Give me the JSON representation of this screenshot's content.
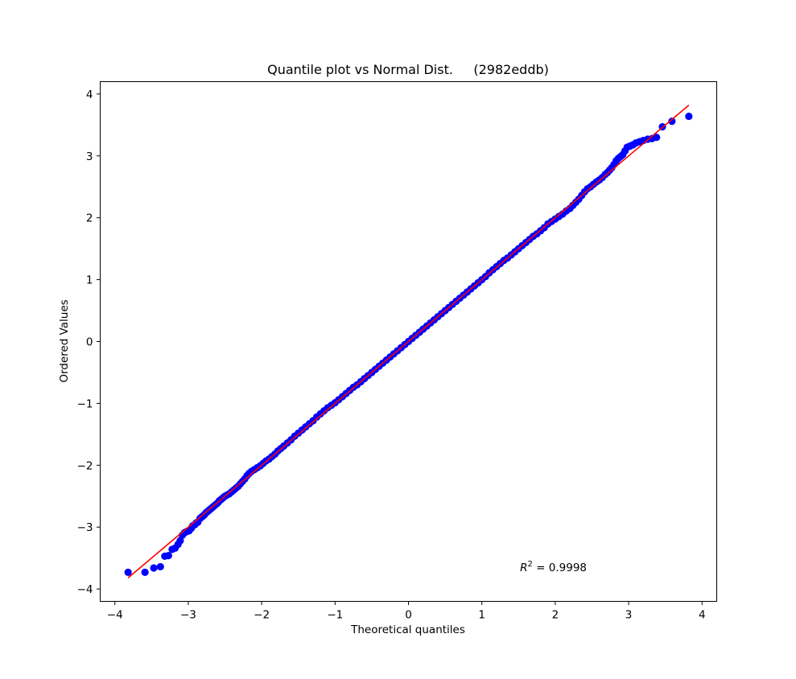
{
  "chart_data": {
    "type": "scatter",
    "title": "Quantile plot vs Normal Dist.     (2982eddb)",
    "xlabel": "Theoretical quantiles",
    "ylabel": "Ordered Values",
    "xlim": [
      -4.2,
      4.2
    ],
    "ylim": [
      -4.2,
      4.2
    ],
    "xticks": [
      -4,
      -3,
      -2,
      -1,
      0,
      1,
      2,
      3,
      4
    ],
    "yticks": [
      -4,
      -3,
      -2,
      -1,
      0,
      1,
      2,
      3,
      4
    ],
    "xtick_labels": [
      "−4",
      "−3",
      "−2",
      "−1",
      "0",
      "1",
      "2",
      "3",
      "4"
    ],
    "ytick_labels": [
      "−4",
      "−3",
      "−2",
      "−1",
      "0",
      "1",
      "2",
      "3",
      "4"
    ],
    "grid": false,
    "annotation": {
      "label": "R",
      "superscript": "2",
      "text": " = 0.9998",
      "x": 1.52,
      "y": -3.65
    },
    "fit_line": {
      "x": [
        -3.82,
        3.82
      ],
      "y": [
        -3.82,
        3.82
      ],
      "color": "#ff0000"
    },
    "marker_color": "#0000ff",
    "series": [
      {
        "points": [
          [
            -3.82,
            -3.73
          ],
          [
            -3.59,
            -3.73
          ],
          [
            -3.47,
            -3.66
          ],
          [
            -3.38,
            -3.64
          ],
          [
            -3.32,
            -3.47
          ],
          [
            -3.27,
            -3.46
          ],
          [
            -3.22,
            -3.36
          ],
          [
            -3.18,
            -3.34
          ],
          [
            -3.14,
            -3.28
          ],
          [
            -3.11,
            -3.22
          ],
          [
            -3.08,
            -3.13
          ],
          [
            -3.05,
            -3.09
          ],
          [
            -3.02,
            -3.07
          ],
          [
            -2.99,
            -3.06
          ],
          [
            -2.96,
            -3.02
          ],
          [
            -2.94,
            -2.98
          ],
          [
            -2.91,
            -2.96
          ],
          [
            -2.89,
            -2.93
          ],
          [
            -2.87,
            -2.92
          ],
          [
            -2.84,
            -2.86
          ],
          [
            -2.82,
            -2.84
          ],
          [
            -2.8,
            -2.82
          ],
          [
            -2.78,
            -2.8
          ],
          [
            -2.76,
            -2.77
          ],
          [
            -2.74,
            -2.75
          ],
          [
            -2.72,
            -2.73
          ],
          [
            -2.7,
            -2.71
          ],
          [
            -2.68,
            -2.69
          ],
          [
            -2.66,
            -2.67
          ],
          [
            -2.64,
            -2.65
          ],
          [
            -2.62,
            -2.63
          ],
          [
            -2.6,
            -2.61
          ],
          [
            -2.58,
            -2.58
          ],
          [
            -2.56,
            -2.56
          ],
          [
            -2.54,
            -2.54
          ],
          [
            -2.52,
            -2.52
          ],
          [
            -2.5,
            -2.5
          ],
          [
            -2.47,
            -2.48
          ],
          [
            -2.44,
            -2.46
          ],
          [
            -2.41,
            -2.43
          ],
          [
            -2.38,
            -2.4
          ],
          [
            -2.35,
            -2.37
          ],
          [
            -2.32,
            -2.34
          ],
          [
            -2.29,
            -2.3
          ],
          [
            -2.26,
            -2.26
          ],
          [
            -2.23,
            -2.22
          ],
          [
            -2.2,
            -2.17
          ],
          [
            -2.17,
            -2.13
          ],
          [
            -2.14,
            -2.1
          ],
          [
            -2.1,
            -2.07
          ],
          [
            -2.06,
            -2.04
          ],
          [
            -2.02,
            -2.01
          ],
          [
            -1.98,
            -1.97
          ],
          [
            -1.94,
            -1.93
          ],
          [
            -1.9,
            -1.9
          ],
          [
            -1.86,
            -1.86
          ],
          [
            -1.82,
            -1.82
          ],
          [
            -1.78,
            -1.77
          ],
          [
            -1.74,
            -1.73
          ],
          [
            -1.7,
            -1.69
          ],
          [
            -1.65,
            -1.64
          ],
          [
            -1.6,
            -1.59
          ],
          [
            -1.55,
            -1.53
          ],
          [
            -1.5,
            -1.48
          ],
          [
            -1.45,
            -1.43
          ],
          [
            -1.4,
            -1.38
          ],
          [
            -1.35,
            -1.33
          ],
          [
            -1.3,
            -1.28
          ],
          [
            -1.25,
            -1.22
          ],
          [
            -1.2,
            -1.17
          ],
          [
            -1.15,
            -1.12
          ],
          [
            -1.1,
            -1.07
          ],
          [
            -1.05,
            -1.03
          ],
          [
            -1.0,
            -0.99
          ],
          [
            -0.95,
            -0.94
          ],
          [
            -0.9,
            -0.89
          ],
          [
            -0.85,
            -0.84
          ],
          [
            -0.8,
            -0.79
          ],
          [
            -0.75,
            -0.74
          ],
          [
            -0.7,
            -0.7
          ],
          [
            -0.65,
            -0.65
          ],
          [
            -0.6,
            -0.6
          ],
          [
            -0.55,
            -0.55
          ],
          [
            -0.5,
            -0.5
          ],
          [
            -0.45,
            -0.45
          ],
          [
            -0.4,
            -0.4
          ],
          [
            -0.35,
            -0.35
          ],
          [
            -0.3,
            -0.3
          ],
          [
            -0.25,
            -0.25
          ],
          [
            -0.2,
            -0.2
          ],
          [
            -0.15,
            -0.15
          ],
          [
            -0.1,
            -0.1
          ],
          [
            -0.05,
            -0.05
          ],
          [
            0.0,
            0.0
          ],
          [
            0.05,
            0.05
          ],
          [
            0.1,
            0.1
          ],
          [
            0.15,
            0.15
          ],
          [
            0.2,
            0.2
          ],
          [
            0.25,
            0.25
          ],
          [
            0.3,
            0.3
          ],
          [
            0.35,
            0.35
          ],
          [
            0.4,
            0.4
          ],
          [
            0.45,
            0.45
          ],
          [
            0.5,
            0.5
          ],
          [
            0.55,
            0.55
          ],
          [
            0.6,
            0.6
          ],
          [
            0.65,
            0.65
          ],
          [
            0.7,
            0.7
          ],
          [
            0.75,
            0.75
          ],
          [
            0.8,
            0.8
          ],
          [
            0.85,
            0.85
          ],
          [
            0.9,
            0.9
          ],
          [
            0.95,
            0.95
          ],
          [
            1.0,
            1.0
          ],
          [
            1.05,
            1.05
          ],
          [
            1.1,
            1.11
          ],
          [
            1.15,
            1.16
          ],
          [
            1.2,
            1.21
          ],
          [
            1.25,
            1.26
          ],
          [
            1.3,
            1.31
          ],
          [
            1.35,
            1.35
          ],
          [
            1.4,
            1.4
          ],
          [
            1.45,
            1.45
          ],
          [
            1.5,
            1.5
          ],
          [
            1.55,
            1.55
          ],
          [
            1.6,
            1.6
          ],
          [
            1.65,
            1.65
          ],
          [
            1.7,
            1.7
          ],
          [
            1.75,
            1.74
          ],
          [
            1.8,
            1.79
          ],
          [
            1.85,
            1.84
          ],
          [
            1.9,
            1.9
          ],
          [
            1.95,
            1.94
          ],
          [
            2.0,
            1.98
          ],
          [
            2.05,
            2.02
          ],
          [
            2.1,
            2.06
          ],
          [
            2.15,
            2.11
          ],
          [
            2.2,
            2.15
          ],
          [
            2.24,
            2.2
          ],
          [
            2.28,
            2.25
          ],
          [
            2.32,
            2.3
          ],
          [
            2.36,
            2.36
          ],
          [
            2.4,
            2.42
          ],
          [
            2.44,
            2.47
          ],
          [
            2.48,
            2.5
          ],
          [
            2.52,
            2.54
          ],
          [
            2.56,
            2.58
          ],
          [
            2.6,
            2.61
          ],
          [
            2.64,
            2.65
          ],
          [
            2.68,
            2.7
          ],
          [
            2.71,
            2.73
          ],
          [
            2.74,
            2.77
          ],
          [
            2.77,
            2.81
          ],
          [
            2.8,
            2.86
          ],
          [
            2.83,
            2.92
          ],
          [
            2.86,
            2.96
          ],
          [
            2.89,
            2.99
          ],
          [
            2.92,
            3.02
          ],
          [
            2.95,
            3.08
          ],
          [
            2.98,
            3.14
          ],
          [
            3.02,
            3.16
          ],
          [
            3.06,
            3.18
          ],
          [
            3.1,
            3.21
          ],
          [
            3.15,
            3.23
          ],
          [
            3.2,
            3.25
          ],
          [
            3.26,
            3.27
          ],
          [
            3.32,
            3.28
          ],
          [
            3.38,
            3.3
          ],
          [
            3.46,
            3.47
          ],
          [
            3.59,
            3.56
          ],
          [
            3.82,
            3.64
          ]
        ]
      }
    ]
  }
}
